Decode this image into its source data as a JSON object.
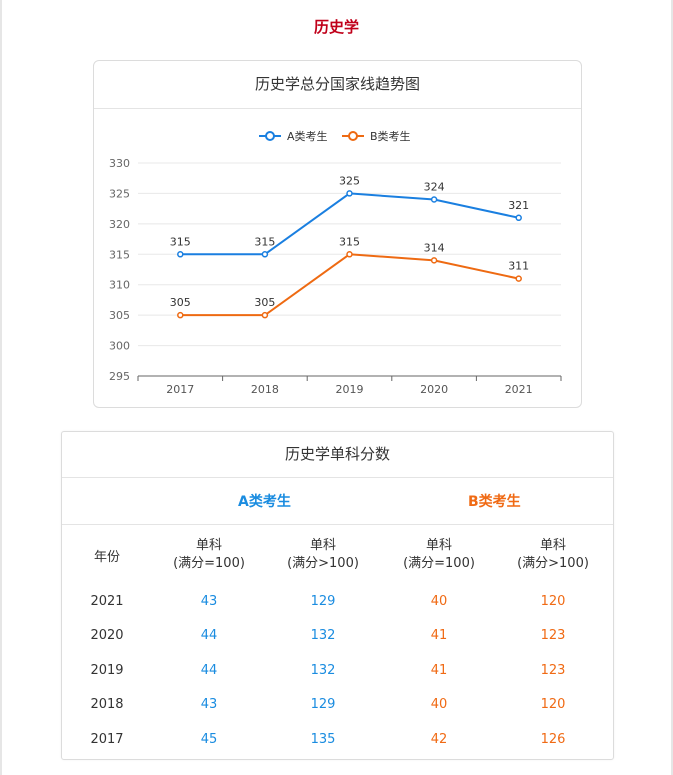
{
  "page": {
    "title": "历史学"
  },
  "chart_title": "历史学总分国家线趋势图",
  "chart_data": {
    "type": "line",
    "title": "历史学总分国家线趋势图",
    "categories": [
      "2017",
      "2018",
      "2019",
      "2020",
      "2021"
    ],
    "series": [
      {
        "name": "A类考生",
        "color": "#1a7fe0",
        "values": [
          315,
          315,
          325,
          324,
          321
        ]
      },
      {
        "name": "B类考生",
        "color": "#ee6a12",
        "values": [
          305,
          305,
          315,
          314,
          311
        ]
      }
    ],
    "ylim": [
      295,
      330
    ],
    "yticks": [
      295,
      300,
      305,
      310,
      315,
      320,
      325,
      330
    ],
    "xlabel": "",
    "ylabel": "",
    "grid": true,
    "legend": "top-center"
  },
  "table": {
    "title": "历史学单科分数",
    "group_a": "A类考生",
    "group_b": "B类考生",
    "headers": {
      "year": "年份",
      "col1": [
        "单科",
        "(满分=100)"
      ],
      "col2": [
        "单科",
        "(满分>100)"
      ],
      "col3": [
        "单科",
        "(满分=100)"
      ],
      "col4": [
        "单科",
        "(满分>100)"
      ]
    },
    "rows": [
      {
        "year": "2021",
        "a100": "43",
        "a150": "129",
        "b100": "40",
        "b150": "120"
      },
      {
        "year": "2020",
        "a100": "44",
        "a150": "132",
        "b100": "41",
        "b150": "123"
      },
      {
        "year": "2019",
        "a100": "44",
        "a150": "132",
        "b100": "41",
        "b150": "123"
      },
      {
        "year": "2018",
        "a100": "43",
        "a150": "129",
        "b100": "40",
        "b150": "120"
      },
      {
        "year": "2017",
        "a100": "45",
        "a150": "135",
        "b100": "42",
        "b150": "126"
      }
    ]
  }
}
